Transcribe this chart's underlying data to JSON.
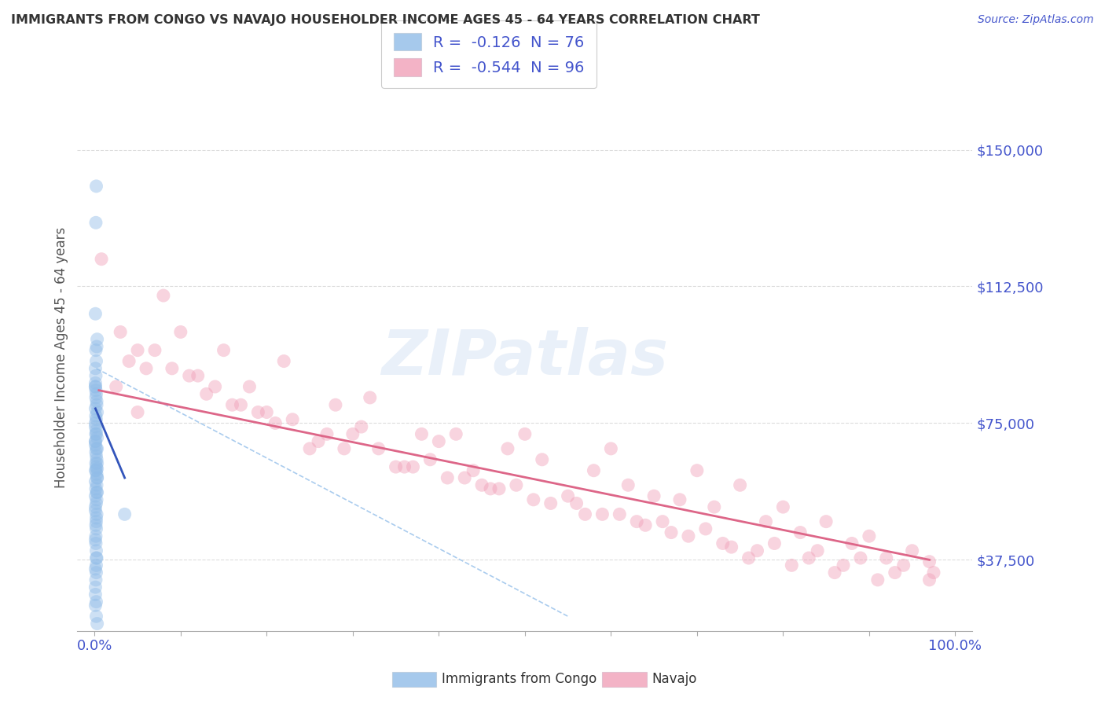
{
  "title": "IMMIGRANTS FROM CONGO VS NAVAJO HOUSEHOLDER INCOME AGES 45 - 64 YEARS CORRELATION CHART",
  "source": "Source: ZipAtlas.com",
  "ylabel": "Householder Income Ages 45 - 64 years",
  "ytick_labels": [
    "$37,500",
    "$75,000",
    "$112,500",
    "$150,000"
  ],
  "ytick_values": [
    37500,
    75000,
    112500,
    150000
  ],
  "xlim": [
    -2.0,
    102.0
  ],
  "ylim": [
    18000,
    168000
  ],
  "watermark": "ZIPatlas",
  "blue_R": "-0.126",
  "blue_N": "76",
  "pink_R": "-0.544",
  "pink_N": "96",
  "blue_label": "Immigrants from Congo",
  "pink_label": "Navajo",
  "blue_scatter_x": [
    0.1,
    0.2,
    0.15,
    0.3,
    0.1,
    0.25,
    0.2,
    0.1,
    0.3,
    0.2,
    0.15,
    0.1,
    0.25,
    0.2,
    0.1,
    0.3,
    0.15,
    0.2,
    0.1,
    0.25,
    0.2,
    0.15,
    0.1,
    0.3,
    0.2,
    0.15,
    0.1,
    0.25,
    0.2,
    0.1,
    0.3,
    0.2,
    0.15,
    0.1,
    0.25,
    0.2,
    0.15,
    0.1,
    0.3,
    0.2,
    0.15,
    0.1,
    0.25,
    0.2,
    0.1,
    0.3,
    0.15,
    0.2,
    0.1,
    0.25,
    0.2,
    0.15,
    0.1,
    0.3,
    0.2,
    0.15,
    0.1,
    0.25,
    0.2,
    0.1,
    0.3,
    0.2,
    0.15,
    0.1,
    0.25,
    3.5,
    0.2,
    0.15,
    0.1,
    0.3,
    0.2,
    0.15,
    0.1,
    0.25,
    0.2,
    0.1
  ],
  "blue_scatter_y": [
    75000,
    140000,
    130000,
    62500,
    70000,
    65000,
    72000,
    105000,
    68000,
    48000,
    95000,
    85000,
    50000,
    40000,
    35000,
    78000,
    42000,
    38000,
    52000,
    80000,
    62000,
    44000,
    86000,
    60000,
    46000,
    84000,
    30000,
    54000,
    76000,
    28000,
    56000,
    68000,
    32000,
    70000,
    58000,
    34000,
    72000,
    74000,
    60000,
    36000,
    64000,
    62000,
    38000,
    66000,
    25000,
    64000,
    88000,
    26000,
    90000,
    56000,
    22000,
    82000,
    43000,
    20000,
    92000,
    47000,
    55000,
    96000,
    53000,
    51000,
    98000,
    49000,
    57000,
    59000,
    61000,
    50000,
    63000,
    67000,
    69000,
    71000,
    73000,
    77000,
    79000,
    81000,
    83000,
    85000
  ],
  "pink_scatter_x": [
    0.8,
    2.5,
    5.0,
    8.0,
    12.0,
    15.0,
    6.0,
    20.0,
    25.0,
    10.0,
    30.0,
    35.0,
    18.0,
    40.0,
    45.0,
    22.0,
    50.0,
    55.0,
    28.0,
    60.0,
    65.0,
    32.0,
    70.0,
    38.0,
    75.0,
    80.0,
    85.0,
    90.0,
    95.0,
    3.0,
    7.0,
    14.0,
    9.0,
    16.0,
    42.0,
    48.0,
    52.0,
    58.0,
    62.0,
    68.0,
    72.0,
    78.0,
    82.0,
    88.0,
    92.0,
    97.0,
    5.0,
    11.0,
    13.0,
    17.0,
    23.0,
    27.0,
    33.0,
    37.0,
    43.0,
    47.0,
    53.0,
    57.0,
    63.0,
    67.0,
    73.0,
    77.0,
    83.0,
    87.0,
    93.0,
    97.0,
    4.0,
    19.0,
    26.0,
    31.0,
    39.0,
    44.0,
    49.0,
    56.0,
    61.0,
    66.0,
    71.0,
    79.0,
    84.0,
    89.0,
    94.0,
    97.5,
    21.0,
    29.0,
    36.0,
    41.0,
    46.0,
    51.0,
    59.0,
    64.0,
    69.0,
    74.0,
    76.0,
    81.0,
    86.0,
    91.0
  ],
  "pink_scatter_y": [
    120000,
    85000,
    78000,
    110000,
    88000,
    95000,
    90000,
    78000,
    68000,
    100000,
    72000,
    63000,
    85000,
    70000,
    58000,
    92000,
    72000,
    55000,
    80000,
    68000,
    55000,
    82000,
    62000,
    72000,
    58000,
    52000,
    48000,
    44000,
    40000,
    100000,
    95000,
    85000,
    90000,
    80000,
    72000,
    68000,
    65000,
    62000,
    58000,
    54000,
    52000,
    48000,
    45000,
    42000,
    38000,
    37000,
    95000,
    88000,
    83000,
    80000,
    76000,
    72000,
    68000,
    63000,
    60000,
    57000,
    53000,
    50000,
    48000,
    45000,
    42000,
    40000,
    38000,
    36000,
    34000,
    32000,
    92000,
    78000,
    70000,
    74000,
    65000,
    62000,
    58000,
    53000,
    50000,
    48000,
    46000,
    42000,
    40000,
    38000,
    36000,
    34000,
    75000,
    68000,
    63000,
    60000,
    57000,
    54000,
    50000,
    47000,
    44000,
    41000,
    38000,
    36000,
    34000,
    32000
  ],
  "blue_line_x": [
    0.1,
    3.5
  ],
  "blue_line_y": [
    79000,
    60000
  ],
  "pink_line_x": [
    0.5,
    97.0
  ],
  "pink_line_y": [
    84000,
    37500
  ],
  "diagonal_line_x": [
    0.2,
    55.0
  ],
  "diagonal_line_y": [
    90000,
    22000
  ],
  "grid_color": "#dddddd",
  "blue_color": "#90bce8",
  "pink_color": "#f0a0b8",
  "blue_line_color": "#3355bb",
  "pink_line_color": "#dd6688",
  "diagonal_color": "#aaccee",
  "title_color": "#333333",
  "source_color": "#4455cc",
  "ytick_color": "#4455cc",
  "xtick_color": "#4455cc",
  "background_color": "#ffffff"
}
